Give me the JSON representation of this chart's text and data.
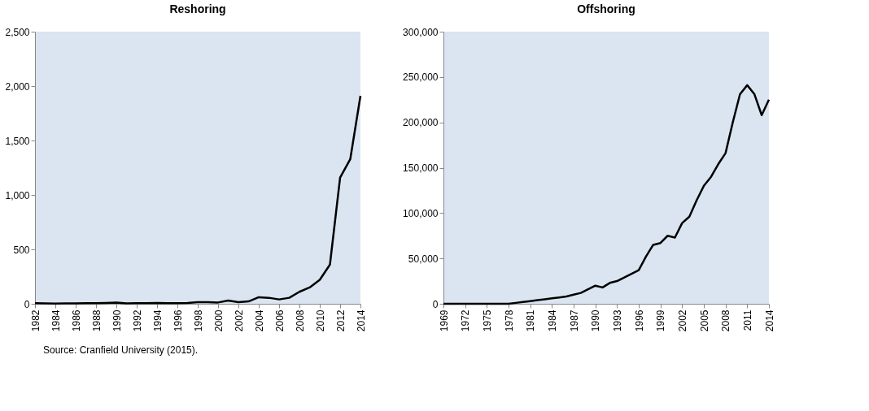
{
  "chart_data": [
    {
      "type": "line",
      "title": "Reshoring",
      "x": [
        1982,
        1983,
        1984,
        1985,
        1986,
        1987,
        1988,
        1989,
        1990,
        1991,
        1992,
        1993,
        1994,
        1995,
        1996,
        1997,
        1998,
        1999,
        2000,
        2001,
        2002,
        2003,
        2004,
        2005,
        2006,
        2007,
        2008,
        2009,
        2010,
        2011,
        2012,
        2013,
        2014
      ],
      "series": [
        {
          "color": "#000000",
          "values": [
            5,
            3,
            2,
            3,
            4,
            5,
            6,
            8,
            12,
            3,
            5,
            6,
            8,
            6,
            6,
            8,
            15,
            14,
            12,
            30,
            15,
            22,
            60,
            55,
            40,
            55,
            110,
            150,
            220,
            360,
            1160,
            1330,
            1910
          ]
        }
      ],
      "xlim": [
        1982,
        2014
      ],
      "xticks": [
        1982,
        1984,
        1986,
        1988,
        1990,
        1992,
        1994,
        1996,
        1998,
        2000,
        2002,
        2004,
        2006,
        2008,
        2010,
        2012,
        2014
      ],
      "ylim": [
        0,
        2500
      ],
      "yticks": [
        {
          "value": 0,
          "label": "0"
        },
        {
          "value": 500,
          "label": "500"
        },
        {
          "value": 1000,
          "label": "1,000"
        },
        {
          "value": 1500,
          "label": "1,500"
        },
        {
          "value": 2000,
          "label": "2,000"
        },
        {
          "value": 2500,
          "label": "2,500"
        }
      ],
      "grid": false,
      "marker": "none",
      "line_style": "solid",
      "annotations": [
        "Source: Cranfield University (2015)."
      ]
    },
    {
      "type": "line",
      "title": "Offshoring",
      "x": [
        1969,
        1970,
        1971,
        1972,
        1973,
        1974,
        1975,
        1976,
        1977,
        1978,
        1979,
        1980,
        1981,
        1982,
        1983,
        1984,
        1985,
        1986,
        1987,
        1988,
        1989,
        1990,
        1991,
        1992,
        1993,
        1994,
        1995,
        1996,
        1997,
        1998,
        1999,
        2000,
        2001,
        2002,
        2003,
        2004,
        2005,
        2006,
        2007,
        2008,
        2009,
        2010,
        2011,
        2012,
        2013,
        2014
      ],
      "series": [
        {
          "color": "#000000",
          "values": [
            0,
            0,
            0,
            0,
            0,
            0,
            0,
            0,
            0,
            0,
            1000,
            2000,
            3000,
            4000,
            5000,
            6000,
            7000,
            8000,
            10000,
            12000,
            16000,
            20000,
            18000,
            23000,
            25000,
            29000,
            33000,
            37000,
            52000,
            65000,
            67000,
            75000,
            73000,
            89000,
            96000,
            114000,
            130000,
            140000,
            154000,
            166000,
            200000,
            231000,
            241000,
            231000,
            208000,
            225000
          ]
        }
      ],
      "xlim": [
        1969,
        2014
      ],
      "xticks": [
        1969,
        1972,
        1975,
        1978,
        1981,
        1984,
        1987,
        1990,
        1993,
        1996,
        1999,
        2002,
        2005,
        2008,
        2011,
        2014
      ],
      "ylim": [
        0,
        300000
      ],
      "yticks": [
        {
          "value": 0,
          "label": "0"
        },
        {
          "value": 50000,
          "label": "50,000"
        },
        {
          "value": 100000,
          "label": "100,000"
        },
        {
          "value": 150000,
          "label": "150,000"
        },
        {
          "value": 200000,
          "label": "200,000"
        },
        {
          "value": 250000,
          "label": "250,000"
        },
        {
          "value": 300000,
          "label": "300,000"
        }
      ],
      "grid": false,
      "marker": "none",
      "line_style": "solid"
    }
  ]
}
